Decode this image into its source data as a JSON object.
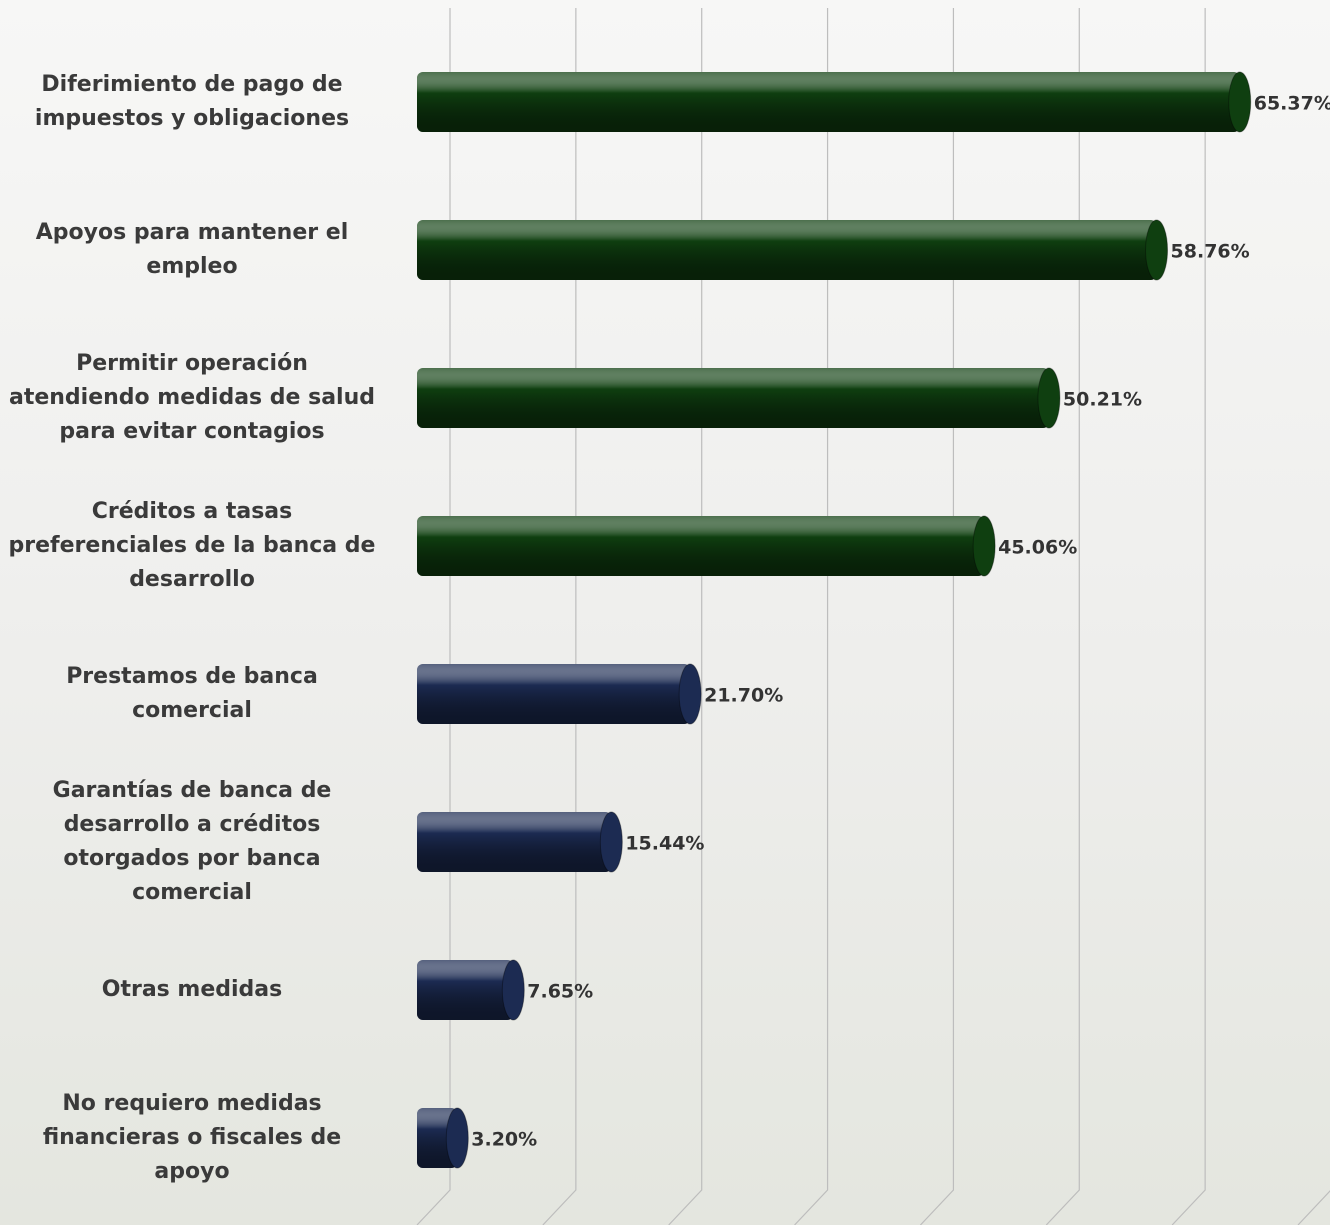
{
  "chart_data": {
    "type": "hbar3d",
    "categories": [
      "Diferimiento de pago de impuestos y obligaciones",
      "Apoyos para mantener el empleo",
      "Permitir operación atendiendo medidas de salud para evitar contagios",
      "Créditos a tasas preferenciales de la banca de desarrollo",
      "Prestamos de banca comercial",
      "Garantías de banca de desarrollo a créditos otorgados por banca comercial",
      "Otras medidas",
      "No requiero medidas financieras o fiscales de apoyo"
    ],
    "values": [
      65.37,
      58.76,
      50.21,
      45.06,
      21.7,
      15.44,
      7.65,
      3.2
    ],
    "value_labels": [
      "65.37%",
      "58.76%",
      "50.21%",
      "45.06%",
      "21.70%",
      "15.44%",
      "7.65%",
      "3.20%"
    ],
    "colors": [
      "#0f3f10",
      "#0f3f10",
      "#0f3f10",
      "#0f3f10",
      "#1c2b52",
      "#1c2b52",
      "#1c2b52",
      "#1c2b52"
    ],
    "xlim": [
      0,
      70
    ],
    "xticks": [
      0,
      10,
      20,
      30,
      40,
      50,
      60,
      70
    ],
    "grid": true
  }
}
